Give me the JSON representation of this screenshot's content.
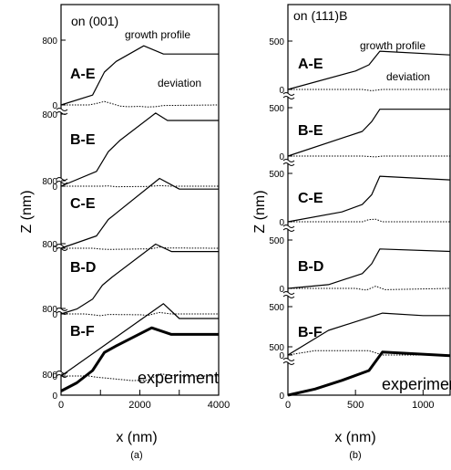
{
  "chart_data": [
    {
      "type": "line",
      "title": "on (001)",
      "caption": "(a)",
      "xlabel": "x (nm)",
      "ylabel": "Z (nm)",
      "xlim": [
        0,
        4000
      ],
      "ylim": [
        0,
        1000
      ],
      "x_ticks": [
        0,
        1000,
        2000,
        3000,
        4000
      ],
      "x_tick_labels": [
        "0",
        "",
        "2000",
        "",
        "4000"
      ],
      "y_tick_labels": [
        "0",
        "800"
      ],
      "annotations": [
        "growth profile",
        "deviation"
      ],
      "panels": [
        {
          "label": "A-E",
          "profile": {
            "x": [
              0,
              800,
              1100,
              1400,
              2100,
              2300,
              2600,
              4000
            ],
            "y": [
              0,
              120,
              400,
              530,
              720,
              680,
              620,
              620
            ]
          },
          "deviation": {
            "x": [
              0,
              700,
              900,
              1100,
              1300,
              1500,
              1700,
              2000,
              2200,
              2400,
              2600,
              4000
            ],
            "y": [
              0,
              0,
              50,
              120,
              40,
              -40,
              -60,
              -50,
              -70,
              -60,
              -20,
              0
            ]
          }
        },
        {
          "label": "B-E",
          "profile": {
            "x": [
              0,
              900,
              1200,
              1500,
              2400,
              2700,
              4000
            ],
            "y": [
              0,
              180,
              420,
              560,
              890,
              800,
              800
            ]
          },
          "deviation": {
            "x": [
              0,
              1000,
              1200,
              1400,
              2200,
              2500,
              2800,
              4000
            ],
            "y": [
              0,
              0,
              10,
              -20,
              -10,
              20,
              0,
              0
            ]
          }
        },
        {
          "label": "C-E",
          "profile": {
            "x": [
              0,
              900,
              1200,
              2500,
              3000,
              4000
            ],
            "y": [
              0,
              150,
              350,
              850,
              720,
              720
            ]
          },
          "deviation": {
            "x": [
              0,
              800,
              1000,
              1200,
              2300,
              2500,
              2700,
              4000
            ],
            "y": [
              0,
              0,
              -30,
              -40,
              -20,
              40,
              10,
              0
            ]
          }
        },
        {
          "label": "B-D",
          "profile": {
            "x": [
              0,
              400,
              800,
              1050,
              1300,
              2400,
              2800,
              4000
            ],
            "y": [
              0,
              60,
              180,
              350,
              450,
              850,
              760,
              760
            ]
          },
          "deviation": {
            "x": [
              0,
              600,
              800,
              1000,
              1200,
              2000,
              2200,
              2500,
              2800,
              4000
            ],
            "y": [
              0,
              0,
              -30,
              -60,
              -20,
              -30,
              -50,
              50,
              0,
              0
            ]
          }
        },
        {
          "label": "B-F",
          "profile": {
            "x": [
              0,
              2600,
              3000,
              4000
            ],
            "y": [
              0,
              880,
              700,
              700
            ]
          },
          "deviation": {
            "x": [
              0,
              700,
              900,
              1200,
              1500,
              1800,
              2200,
              2500,
              2800,
              3200,
              4000
            ],
            "y": [
              0,
              0,
              -40,
              -80,
              -120,
              -160,
              -150,
              80,
              20,
              0,
              0
            ]
          }
        },
        {
          "label": "experiment",
          "profile": {
            "x": [
              0,
              400,
              800,
              1100,
              1400,
              2300,
              2800,
              4000
            ],
            "y": [
              50,
              150,
              300,
              520,
              600,
              820,
              740,
              740
            ]
          }
        }
      ]
    },
    {
      "type": "line",
      "title": "on (111)B",
      "caption": "(b)",
      "xlabel": "x (nm)",
      "ylabel": "Z (nm)",
      "xlim": [
        0,
        1200
      ],
      "ylim": [
        0,
        600
      ],
      "x_ticks": [
        0,
        500,
        1000
      ],
      "x_tick_labels": [
        "0",
        "500",
        "1000"
      ],
      "y_tick_labels": [
        "0",
        "500"
      ],
      "annotations": [
        "growth profile",
        "deviation"
      ],
      "panels": [
        {
          "label": "A-E",
          "profile": {
            "x": [
              0,
              500,
              600,
              680,
              1200
            ],
            "y": [
              0,
              150,
              200,
              310,
              280
            ]
          },
          "deviation": {
            "x": [
              0,
              550,
              620,
              700,
              1200
            ],
            "y": [
              0,
              0,
              -30,
              0,
              0
            ]
          }
        },
        {
          "label": "B-E",
          "profile": {
            "x": [
              0,
              550,
              620,
              680,
              1200
            ],
            "y": [
              0,
              200,
              280,
              380,
              380
            ]
          },
          "deviation": {
            "x": [
              0,
              550,
              650,
              700,
              1200
            ],
            "y": [
              0,
              0,
              -20,
              0,
              0
            ]
          }
        },
        {
          "label": "C-E",
          "profile": {
            "x": [
              0,
              400,
              550,
              620,
              680,
              1200
            ],
            "y": [
              0,
              80,
              140,
              220,
              370,
              340
            ]
          },
          "deviation": {
            "x": [
              0,
              550,
              600,
              650,
              700,
              1200
            ],
            "y": [
              0,
              0,
              50,
              60,
              0,
              0
            ]
          }
        },
        {
          "label": "B-D",
          "profile": {
            "x": [
              0,
              300,
              550,
              620,
              680,
              1200
            ],
            "y": [
              0,
              30,
              120,
              200,
              320,
              300
            ]
          },
          "deviation": {
            "x": [
              0,
              500,
              580,
              650,
              720,
              1200
            ],
            "y": [
              0,
              0,
              -40,
              50,
              -30,
              0
            ]
          }
        },
        {
          "label": "B-F",
          "profile": {
            "x": [
              0,
              300,
              700,
              1000,
              1200
            ],
            "y": [
              0,
              200,
              340,
              320,
              320
            ]
          },
          "deviation": {
            "x": [
              0,
              200,
              600,
              700,
              1200
            ],
            "y": [
              0,
              100,
              100,
              0,
              0
            ]
          }
        },
        {
          "label": "experiment",
          "profile": {
            "x": [
              0,
              200,
              400,
              600,
              700,
              1200
            ],
            "y": [
              0,
              50,
              120,
              200,
              350,
              320
            ]
          }
        }
      ]
    }
  ]
}
